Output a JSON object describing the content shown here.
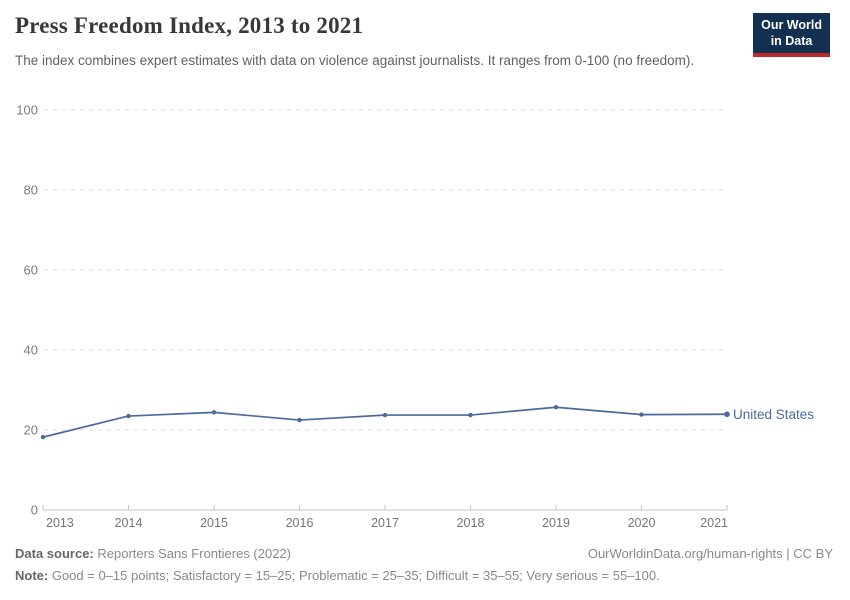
{
  "header": {
    "title": "Press Freedom Index, 2013 to 2021",
    "subtitle": "The index combines expert estimates with data on violence against journalists. It ranges from 0-100 (no freedom).",
    "logo": {
      "line1": "Our World",
      "line2": "in Data",
      "background_color": "#12304f",
      "stripe_color": "#c0282d"
    }
  },
  "chart_data": {
    "type": "line",
    "title": "Press Freedom Index, 2013 to 2021",
    "x": [
      2013,
      2014,
      2015,
      2016,
      2017,
      2018,
      2019,
      2020,
      2021
    ],
    "series": [
      {
        "name": "United States",
        "values": [
          18.22,
          23.49,
          24.41,
          22.49,
          23.74,
          23.73,
          25.69,
          23.85,
          23.93
        ],
        "color": "#4c6a9c"
      }
    ],
    "xlabel": "",
    "ylabel": "",
    "ylim": [
      0,
      100
    ],
    "yticks": [
      0,
      20,
      40,
      60,
      80,
      100
    ],
    "grid": "horizontal-dashed",
    "legend_position": "end-of-line-label",
    "axis_color": "#c6c6c6",
    "gridline_color": "#dedede",
    "tick_label_color": "#767676"
  },
  "footer": {
    "datasource_label": "Data source:",
    "datasource_text": " Reporters Sans Frontieres (2022)",
    "rights": "OurWorldinData.org/human-rights | CC BY",
    "note_label": "Note:",
    "note_text": " Good = 0–15 points; Satisfactory = 15–25; Problematic = 25–35; Difficult = 35–55; Very serious = 55–100."
  }
}
